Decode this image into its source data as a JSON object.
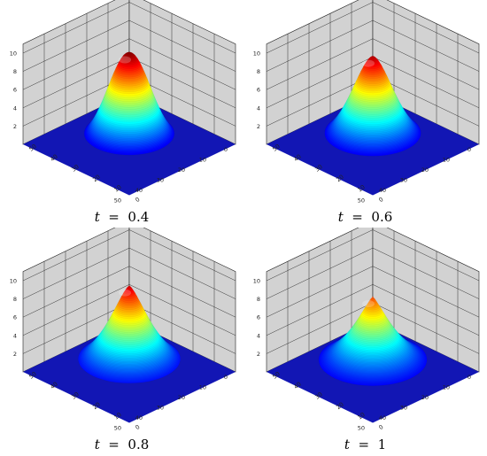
{
  "chart_data": [
    {
      "type": "surface3d",
      "t_label": "t",
      "t_value": "0.4",
      "peak_height": 10.0,
      "sharpness": 0.0,
      "ring_height": 3.1,
      "ring_radius": 12,
      "x_ticks": [
        "0",
        "10",
        "20",
        "30",
        "40",
        "50"
      ],
      "y_ticks": [
        "0",
        "10",
        "20",
        "30",
        "40",
        "50"
      ],
      "z_ticks": [
        "2",
        "4",
        "6",
        "8",
        "10"
      ],
      "xlim": [
        0,
        50
      ],
      "ylim": [
        0,
        50
      ],
      "zlim": [
        0,
        11
      ]
    },
    {
      "type": "surface3d",
      "t_label": "t",
      "t_value": "0.6",
      "peak_height": 9.6,
      "sharpness": 0.3,
      "ring_height": 2.4,
      "ring_radius": 13,
      "x_ticks": [
        "0",
        "10",
        "20",
        "30",
        "40",
        "50"
      ],
      "y_ticks": [
        "0",
        "10",
        "20",
        "30",
        "40",
        "50"
      ],
      "z_ticks": [
        "2",
        "4",
        "6",
        "8",
        "10"
      ],
      "xlim": [
        0,
        50
      ],
      "ylim": [
        0,
        50
      ],
      "zlim": [
        0,
        11
      ]
    },
    {
      "type": "surface3d",
      "t_label": "t",
      "t_value": "0.8",
      "peak_height": 9.4,
      "sharpness": 0.6,
      "ring_height": 2.4,
      "ring_radius": 14,
      "x_ticks": [
        "0",
        "10",
        "20",
        "30",
        "40",
        "50"
      ],
      "y_ticks": [
        "0",
        "10",
        "20",
        "30",
        "40",
        "50"
      ],
      "z_ticks": [
        "2",
        "4",
        "6",
        "8",
        "10"
      ],
      "xlim": [
        0,
        50
      ],
      "ylim": [
        0,
        50
      ],
      "zlim": [
        0,
        11
      ]
    },
    {
      "type": "surface3d",
      "t_label": "t",
      "t_value": "1",
      "peak_height": 8.2,
      "sharpness": 0.75,
      "ring_height": 2.4,
      "ring_radius": 15,
      "x_ticks": [
        "0",
        "10",
        "20",
        "30",
        "40",
        "50"
      ],
      "y_ticks": [
        "0",
        "10",
        "20",
        "30",
        "40",
        "50"
      ],
      "z_ticks": [
        "2",
        "4",
        "6",
        "8",
        "10"
      ],
      "xlim": [
        0,
        50
      ],
      "ylim": [
        0,
        50
      ],
      "zlim": [
        0,
        11
      ]
    }
  ],
  "colors": {
    "wall": "#d2d2d2",
    "floor": "#1216b4",
    "grid": "#222222"
  }
}
